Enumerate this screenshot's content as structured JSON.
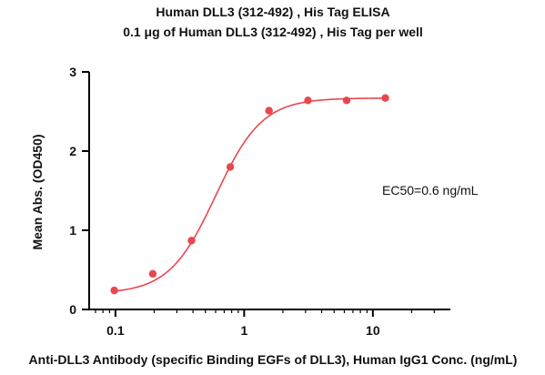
{
  "chart_data": {
    "type": "scatter",
    "title": "Human DLL3 (312-492) , His Tag ELISA",
    "subtitle": "0.1 μg of Human DLL3 (312-492) , His Tag per well",
    "xlabel": "Anti-DLL3 Antibody (specific Binding EGFs of DLL3), Human IgG1 Conc. (ng/mL)",
    "ylabel": "Mean Abs. (OD450)",
    "x_scale": "log",
    "xlim": [
      0.0625,
      40
    ],
    "ylim": [
      0,
      3
    ],
    "x_ticks": [
      0.1,
      1,
      10
    ],
    "x_tick_labels": [
      "0.1",
      "1",
      "10"
    ],
    "y_ticks": [
      0,
      1,
      2,
      3
    ],
    "y_tick_labels": [
      "0",
      "1",
      "2",
      "3"
    ],
    "grid": false,
    "legend": "none",
    "series": [
      {
        "x": [
          0.098,
          0.195,
          0.39,
          0.78,
          1.56,
          3.13,
          6.25,
          12.5
        ],
        "values": [
          0.24,
          0.45,
          0.87,
          1.8,
          2.51,
          2.64,
          2.64,
          2.67
        ],
        "color": "#e8474e",
        "marker": "circle",
        "fit": "4PL sigmoid"
      }
    ],
    "fit_curve": {
      "bottom": 0.2,
      "top": 2.67,
      "ec50": 0.6,
      "hill_slope": 2.4,
      "color": "#e8474e"
    },
    "annotations": [
      "EC50=0.6 ng/mL"
    ]
  }
}
